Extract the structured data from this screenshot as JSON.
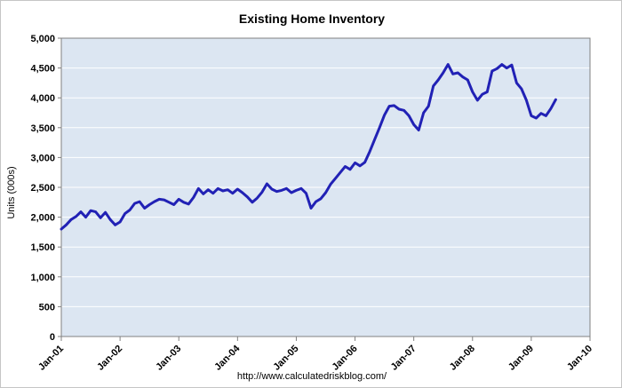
{
  "chart": {
    "title": "Existing Home Inventory",
    "ylabel": "Units (000s)",
    "footer": "http://www.calculatedriskblog.com/",
    "colors": {
      "line": "#2121b5",
      "plot_bg": "#dce6f2",
      "grid": "#ffffff",
      "axis": "#808080"
    }
  },
  "chart_data": {
    "type": "line",
    "title": "Existing Home Inventory",
    "xlabel": "",
    "ylabel": "Units (000s)",
    "ylim": [
      0,
      5000
    ],
    "ytick_step": 500,
    "grid": true,
    "legend_position": "none",
    "xticks": [
      "Jan-01",
      "Jan-02",
      "Jan-03",
      "Jan-04",
      "Jan-05",
      "Jan-06",
      "Jan-07",
      "Jan-08",
      "Jan-09",
      "Jan-10"
    ],
    "x_months_total": 108,
    "x_start": "Jan-01",
    "x_frequency": "monthly",
    "series_name": "Existing Home Inventory (000s units)",
    "values": [
      1800,
      1870,
      1960,
      2010,
      2090,
      2000,
      2110,
      2090,
      1990,
      2080,
      1960,
      1870,
      1920,
      2060,
      2120,
      2230,
      2260,
      2150,
      2210,
      2260,
      2300,
      2290,
      2250,
      2210,
      2300,
      2250,
      2220,
      2330,
      2480,
      2390,
      2460,
      2400,
      2480,
      2440,
      2460,
      2400,
      2470,
      2410,
      2340,
      2250,
      2320,
      2420,
      2560,
      2470,
      2430,
      2450,
      2480,
      2410,
      2450,
      2480,
      2400,
      2150,
      2260,
      2310,
      2410,
      2550,
      2650,
      2750,
      2850,
      2800,
      2910,
      2860,
      2920,
      3100,
      3300,
      3500,
      3710,
      3860,
      3870,
      3810,
      3790,
      3700,
      3550,
      3460,
      3750,
      3860,
      4200,
      4300,
      4420,
      4560,
      4400,
      4420,
      4350,
      4300,
      4100,
      3960,
      4060,
      4100,
      4450,
      4490,
      4560,
      4500,
      4550,
      4250,
      4150,
      3960,
      3700,
      3660,
      3740,
      3700,
      3820,
      3970
    ]
  }
}
